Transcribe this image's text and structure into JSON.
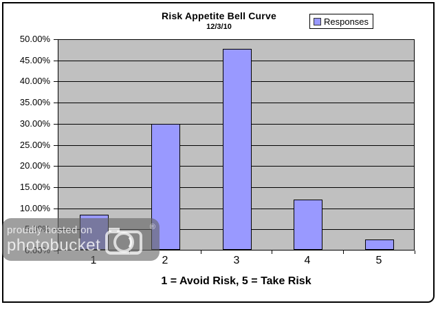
{
  "page": {
    "background": "#FFFFFF",
    "border_color": "#000000"
  },
  "watermark": {
    "line1": "proudly hosted on",
    "line2": "photobucket",
    "registered": "®"
  },
  "chart_data": {
    "type": "bar",
    "title": "Risk Appetite Bell Curve",
    "subtitle": "12/3/10",
    "xlabel": "1 = Avoid Risk, 5 = Take Risk",
    "ylabel": "",
    "categories": [
      "1",
      "2",
      "3",
      "4",
      "5"
    ],
    "series": [
      {
        "name": "Responses",
        "values": [
          8.33,
          29.76,
          47.62,
          11.9,
          2.38
        ]
      }
    ],
    "ylim": [
      0,
      50
    ],
    "ytick_step": 5,
    "ytick_labels": [
      "50.00%",
      "45.00%",
      "40.00%",
      "35.00%",
      "30.00%",
      "25.00%",
      "20.00%",
      "15.00%",
      "10.00%",
      "5.00%",
      "0.00%"
    ],
    "grid": true,
    "legend": {
      "position": "top-right",
      "entries": [
        "Responses"
      ]
    },
    "colors": {
      "bar_fill": "#9999FF",
      "bar_border": "#000000",
      "plot_bg": "#C0C0C0",
      "gridline": "#000000"
    }
  }
}
